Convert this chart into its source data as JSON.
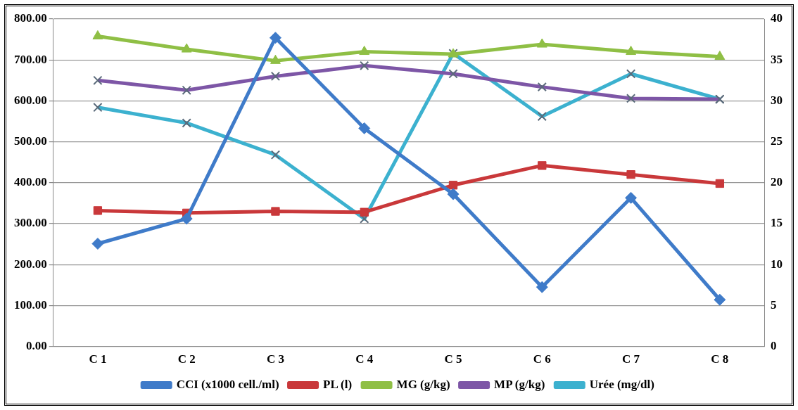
{
  "chart_data": {
    "type": "line",
    "categories": [
      "C 1",
      "C 2",
      "C 3",
      "C 4",
      "C 5",
      "C 6",
      "C 7",
      "C 8"
    ],
    "series": [
      {
        "name": "CCI (x1000 cell./ml)",
        "color": "#3f7bc9",
        "marker": "diamond",
        "values": [
          251,
          312,
          754,
          533,
          372,
          145,
          363,
          114
        ]
      },
      {
        "name": "PL (l)",
        "color": "#c9383a",
        "marker": "square",
        "axis": "y2",
        "values": [
          16.6,
          16.3,
          16.5,
          16.4,
          19.7,
          22.1,
          21.0,
          19.9
        ]
      },
      {
        "name": "MG (g/kg)",
        "color": "#8fbf45",
        "marker": "triangle",
        "axis": "y2",
        "values": [
          37.9,
          36.3,
          34.9,
          36.0,
          35.7,
          36.9,
          36.0,
          35.4
        ]
      },
      {
        "name": "MP (g/kg)",
        "color": "#7d56a6",
        "marker": "cross",
        "axis": "y2",
        "values": [
          32.5,
          31.3,
          33.0,
          34.3,
          33.3,
          31.7,
          30.3,
          30.2
        ]
      },
      {
        "name": "Urée (mg/dl)",
        "color": "#3cb1cf",
        "marker": "cross",
        "axis": "y2",
        "values": [
          29.2,
          27.3,
          23.4,
          15.6,
          35.8,
          28.1,
          33.3,
          30.2
        ]
      }
    ],
    "ylim": [
      0,
      800
    ],
    "yticks": [
      {
        "value": 0,
        "label": "0.00"
      },
      {
        "value": 100,
        "label": "100.00"
      },
      {
        "value": 200,
        "label": "200.00"
      },
      {
        "value": 300,
        "label": "300.00"
      },
      {
        "value": 400,
        "label": "400.00"
      },
      {
        "value": 500,
        "label": "500.00"
      },
      {
        "value": 600,
        "label": "600.00"
      },
      {
        "value": 700,
        "label": "700.00"
      },
      {
        "value": 800,
        "label": "800.00"
      }
    ],
    "y2lim": [
      0,
      40
    ],
    "y2ticks": [
      0,
      5,
      10,
      15,
      20,
      25,
      30,
      35,
      40
    ],
    "grid": "y",
    "legend": "bottom"
  }
}
